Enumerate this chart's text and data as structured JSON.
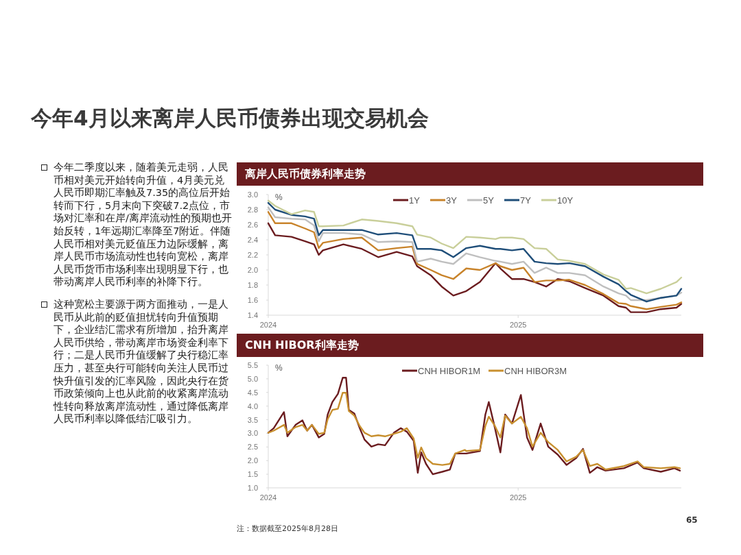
{
  "chart_data": [
    {
      "type": "other",
      "title": "今年4月以来离岸人民币债券出现交易机会",
      "annotations": [
        "今年二季度以来，随着美元走弱，人民币相对美元开始转向升值，4月美元兑人民币即期汇率触及7.35的高位后开始转而下行，5月末向下突破7.2点位，市场对汇率和在岸/离岸流动性的预期也开始反转，1年远期汇率降至7附近。伴随人民币相对美元贬值压力边际缓解，离岸人民币市场流动性也转向宽松，离岸人民币货币市场利率出现明显下行，也带动离岸人民币利率的补降下行。",
        "这种宽松主要源于两方面推动，一是人民币从此前的贬值担忧转向升值预期下，企业结汇需求有所增加，抬升离岸人民币供给，带动离岸市场资金利率下行；二是人民币升值缓解了央行稳汇率压力，甚至央行可能转向关注人民币过快升值引发的汇率风险，因此央行在货币政策倾向上也从此前的收紧离岸流动性转向释放离岸流动性，通过降低离岸人民币利率以降低结汇吸引力。"
      ]
    },
    {
      "type": "line",
      "title": "离岸人民币债券利率走势",
      "ylabel": "%",
      "legend": "top",
      "xlim": [
        "2024-01-01",
        "2025-08-28"
      ],
      "xticks": [
        "2024",
        "2025"
      ],
      "ylim": [
        1.4,
        3.0
      ],
      "yticks": [
        1.4,
        1.6,
        1.8,
        {
          "value": 2.0,
          "label": "2.0"
        },
        2.2,
        2.4,
        2.6,
        2.8,
        {
          "value": 3.0,
          "label": "3.0"
        }
      ],
      "x": [
        "2024-01-01",
        "2024-01-11",
        "2024-02-04",
        "2024-02-24",
        "2024-03-08",
        "2024-03-15",
        "2024-03-21",
        "2024-04-20",
        "2024-05-17",
        "2024-06-10",
        "2024-07-07",
        "2024-07-30",
        "2024-08-06",
        "2024-08-26",
        "2024-09-11",
        "2024-09-28",
        "2024-10-17",
        "2024-11-06",
        "2024-11-29",
        "2024-12-06",
        "2024-12-23",
        "2025-01-09",
        "2025-01-25",
        "2025-02-11",
        "2025-02-28",
        "2025-03-17",
        "2025-04-09",
        "2025-05-06",
        "2025-05-28",
        "2025-06-08",
        "2025-06-15",
        "2025-07-08",
        "2025-07-29",
        "2025-08-21",
        "2025-08-28"
      ],
      "series": [
        {
          "name": "1Y",
          "color": "#6b1c1f",
          "values": [
            2.62,
            2.46,
            2.44,
            2.38,
            2.34,
            2.2,
            2.26,
            2.34,
            2.28,
            2.17,
            2.24,
            2.18,
            2.05,
            1.93,
            1.78,
            1.66,
            1.72,
            1.84,
            2.09,
            2.02,
            1.88,
            1.88,
            1.84,
            1.78,
            1.88,
            1.85,
            1.76,
            1.66,
            1.52,
            1.5,
            1.44,
            1.44,
            1.48,
            1.5,
            1.55
          ]
        },
        {
          "name": "3Y",
          "color": "#c8832a",
          "values": [
            2.77,
            2.62,
            2.62,
            2.55,
            2.5,
            2.29,
            2.36,
            2.41,
            2.43,
            2.26,
            2.29,
            2.31,
            2.08,
            2.0,
            1.93,
            1.88,
            2.02,
            2.0,
            2.09,
            2.05,
            2.0,
            2.03,
            1.84,
            1.86,
            1.86,
            1.87,
            1.8,
            1.68,
            1.56,
            1.55,
            1.52,
            1.48,
            1.51,
            1.54,
            1.57
          ]
        },
        {
          "name": "5Y",
          "color": "#bfbfbf",
          "values": [
            2.83,
            2.7,
            2.68,
            2.67,
            2.59,
            2.38,
            2.49,
            2.49,
            2.47,
            2.37,
            2.38,
            2.37,
            2.11,
            2.15,
            2.11,
            2.08,
            2.22,
            2.17,
            2.12,
            2.11,
            2.08,
            2.11,
            1.96,
            2.03,
            1.96,
            1.96,
            1.93,
            1.78,
            1.69,
            1.66,
            1.6,
            1.6,
            1.63,
            1.66,
            1.7
          ]
        },
        {
          "name": "7Y",
          "color": "#1f4e79",
          "values": [
            2.89,
            2.8,
            2.73,
            2.71,
            2.68,
            2.46,
            2.53,
            2.53,
            2.53,
            2.47,
            2.49,
            2.46,
            2.28,
            2.28,
            2.26,
            2.17,
            2.29,
            2.32,
            2.28,
            2.28,
            2.26,
            2.28,
            2.11,
            2.09,
            2.08,
            2.09,
            2.05,
            1.91,
            1.81,
            1.72,
            1.67,
            1.58,
            1.63,
            1.66,
            1.75
          ]
        },
        {
          "name": "10Y",
          "color": "#c9cf9a",
          "values": [
            2.92,
            2.85,
            2.74,
            2.79,
            2.77,
            2.58,
            2.58,
            2.59,
            2.67,
            2.65,
            2.62,
            2.58,
            2.47,
            2.43,
            2.35,
            2.29,
            2.44,
            2.43,
            2.41,
            2.43,
            2.43,
            2.41,
            2.29,
            2.28,
            2.14,
            2.12,
            2.08,
            1.94,
            1.87,
            1.75,
            1.76,
            1.69,
            1.75,
            1.84,
            1.9
          ]
        }
      ]
    },
    {
      "type": "line",
      "title": "CNH HIBOR利率走势",
      "ylabel": "%",
      "legend": "top",
      "xlim": [
        "2024-01-01",
        "2025-08-28"
      ],
      "xticks": [
        "2024",
        "2025"
      ],
      "ylim": [
        1.0,
        5.5
      ],
      "yticks": [
        {
          "value": 1.0,
          "label": "1.0"
        },
        1.5,
        {
          "value": 2.0,
          "label": "2.0"
        },
        2.5,
        {
          "value": 3.0,
          "label": "3.0"
        },
        3.5,
        {
          "value": 4.0,
          "label": "4.0"
        },
        4.5,
        {
          "value": 5.0,
          "label": "5.0"
        },
        5.5
      ],
      "x": [
        "2024-01-01",
        "2024-01-09",
        "2024-01-24",
        "2024-01-29",
        "2024-02-10",
        "2024-02-20",
        "2024-02-27",
        "2024-03-05",
        "2024-03-15",
        "2024-03-23",
        "2024-03-28",
        "2024-04-04",
        "2024-04-12",
        "2024-04-19",
        "2024-04-24",
        "2024-04-28",
        "2024-05-06",
        "2024-05-14",
        "2024-05-21",
        "2024-05-31",
        "2024-06-10",
        "2024-06-20",
        "2024-07-03",
        "2024-07-13",
        "2024-07-22",
        "2024-08-01",
        "2024-08-07",
        "2024-08-12",
        "2024-08-19",
        "2024-08-29",
        "2024-09-12",
        "2024-09-23",
        "2024-10-01",
        "2024-10-15",
        "2024-10-17",
        "2024-11-06",
        "2024-11-14",
        "2024-11-19",
        "2024-11-28",
        "2024-12-06",
        "2024-12-13",
        "2024-12-23",
        "2025-01-05",
        "2025-01-14",
        "2025-01-22",
        "2025-02-03",
        "2025-02-14",
        "2025-02-28",
        "2025-03-13",
        "2025-03-27",
        "2025-04-06",
        "2025-04-16",
        "2025-04-27",
        "2025-05-09",
        "2025-06-05",
        "2025-06-25",
        "2025-07-04",
        "2025-07-29",
        "2025-08-18",
        "2025-08-26"
      ],
      "series": [
        {
          "name": "CNH HIBOR1M",
          "color": "#6b1c1f",
          "values": [
            3.02,
            3.19,
            3.78,
            2.89,
            3.31,
            3.48,
            3.1,
            3.31,
            2.85,
            2.98,
            3.69,
            4.15,
            4.45,
            5.04,
            5.04,
            3.86,
            3.73,
            3.19,
            2.77,
            2.51,
            2.6,
            2.56,
            3.02,
            3.19,
            3.06,
            2.73,
            1.55,
            2.3,
            1.88,
            1.5,
            1.59,
            1.67,
            2.26,
            2.26,
            2.26,
            2.35,
            3.69,
            4.15,
            3.19,
            2.3,
            3.69,
            3.36,
            4.41,
            2.85,
            2.39,
            3.36,
            2.51,
            2.22,
            1.84,
            2.09,
            2.43,
            1.55,
            1.76,
            1.63,
            1.72,
            1.93,
            1.72,
            1.59,
            1.72,
            1.63
          ]
        },
        {
          "name": "CNH HIBOR3M",
          "color": "#c8902f",
          "values": [
            3.02,
            3.1,
            3.31,
            3.02,
            3.23,
            3.31,
            3.1,
            3.31,
            2.98,
            3.02,
            3.52,
            3.86,
            3.9,
            4.49,
            4.49,
            3.82,
            3.65,
            3.27,
            3.02,
            2.89,
            2.93,
            2.89,
            2.98,
            3.06,
            3.19,
            2.81,
            2.1,
            2.48,
            2.09,
            1.88,
            1.84,
            1.88,
            2.26,
            2.39,
            2.35,
            2.39,
            3.27,
            3.61,
            3.27,
            2.85,
            3.65,
            3.36,
            3.61,
            3.19,
            2.51,
            3.02,
            2.68,
            2.39,
            1.97,
            2.14,
            2.39,
            1.8,
            1.88,
            1.67,
            1.8,
            1.97,
            1.76,
            1.72,
            1.76,
            1.72
          ]
        }
      ],
      "annotations": [
        "注：数据截至2025年8月28日",
        "65"
      ]
    }
  ]
}
